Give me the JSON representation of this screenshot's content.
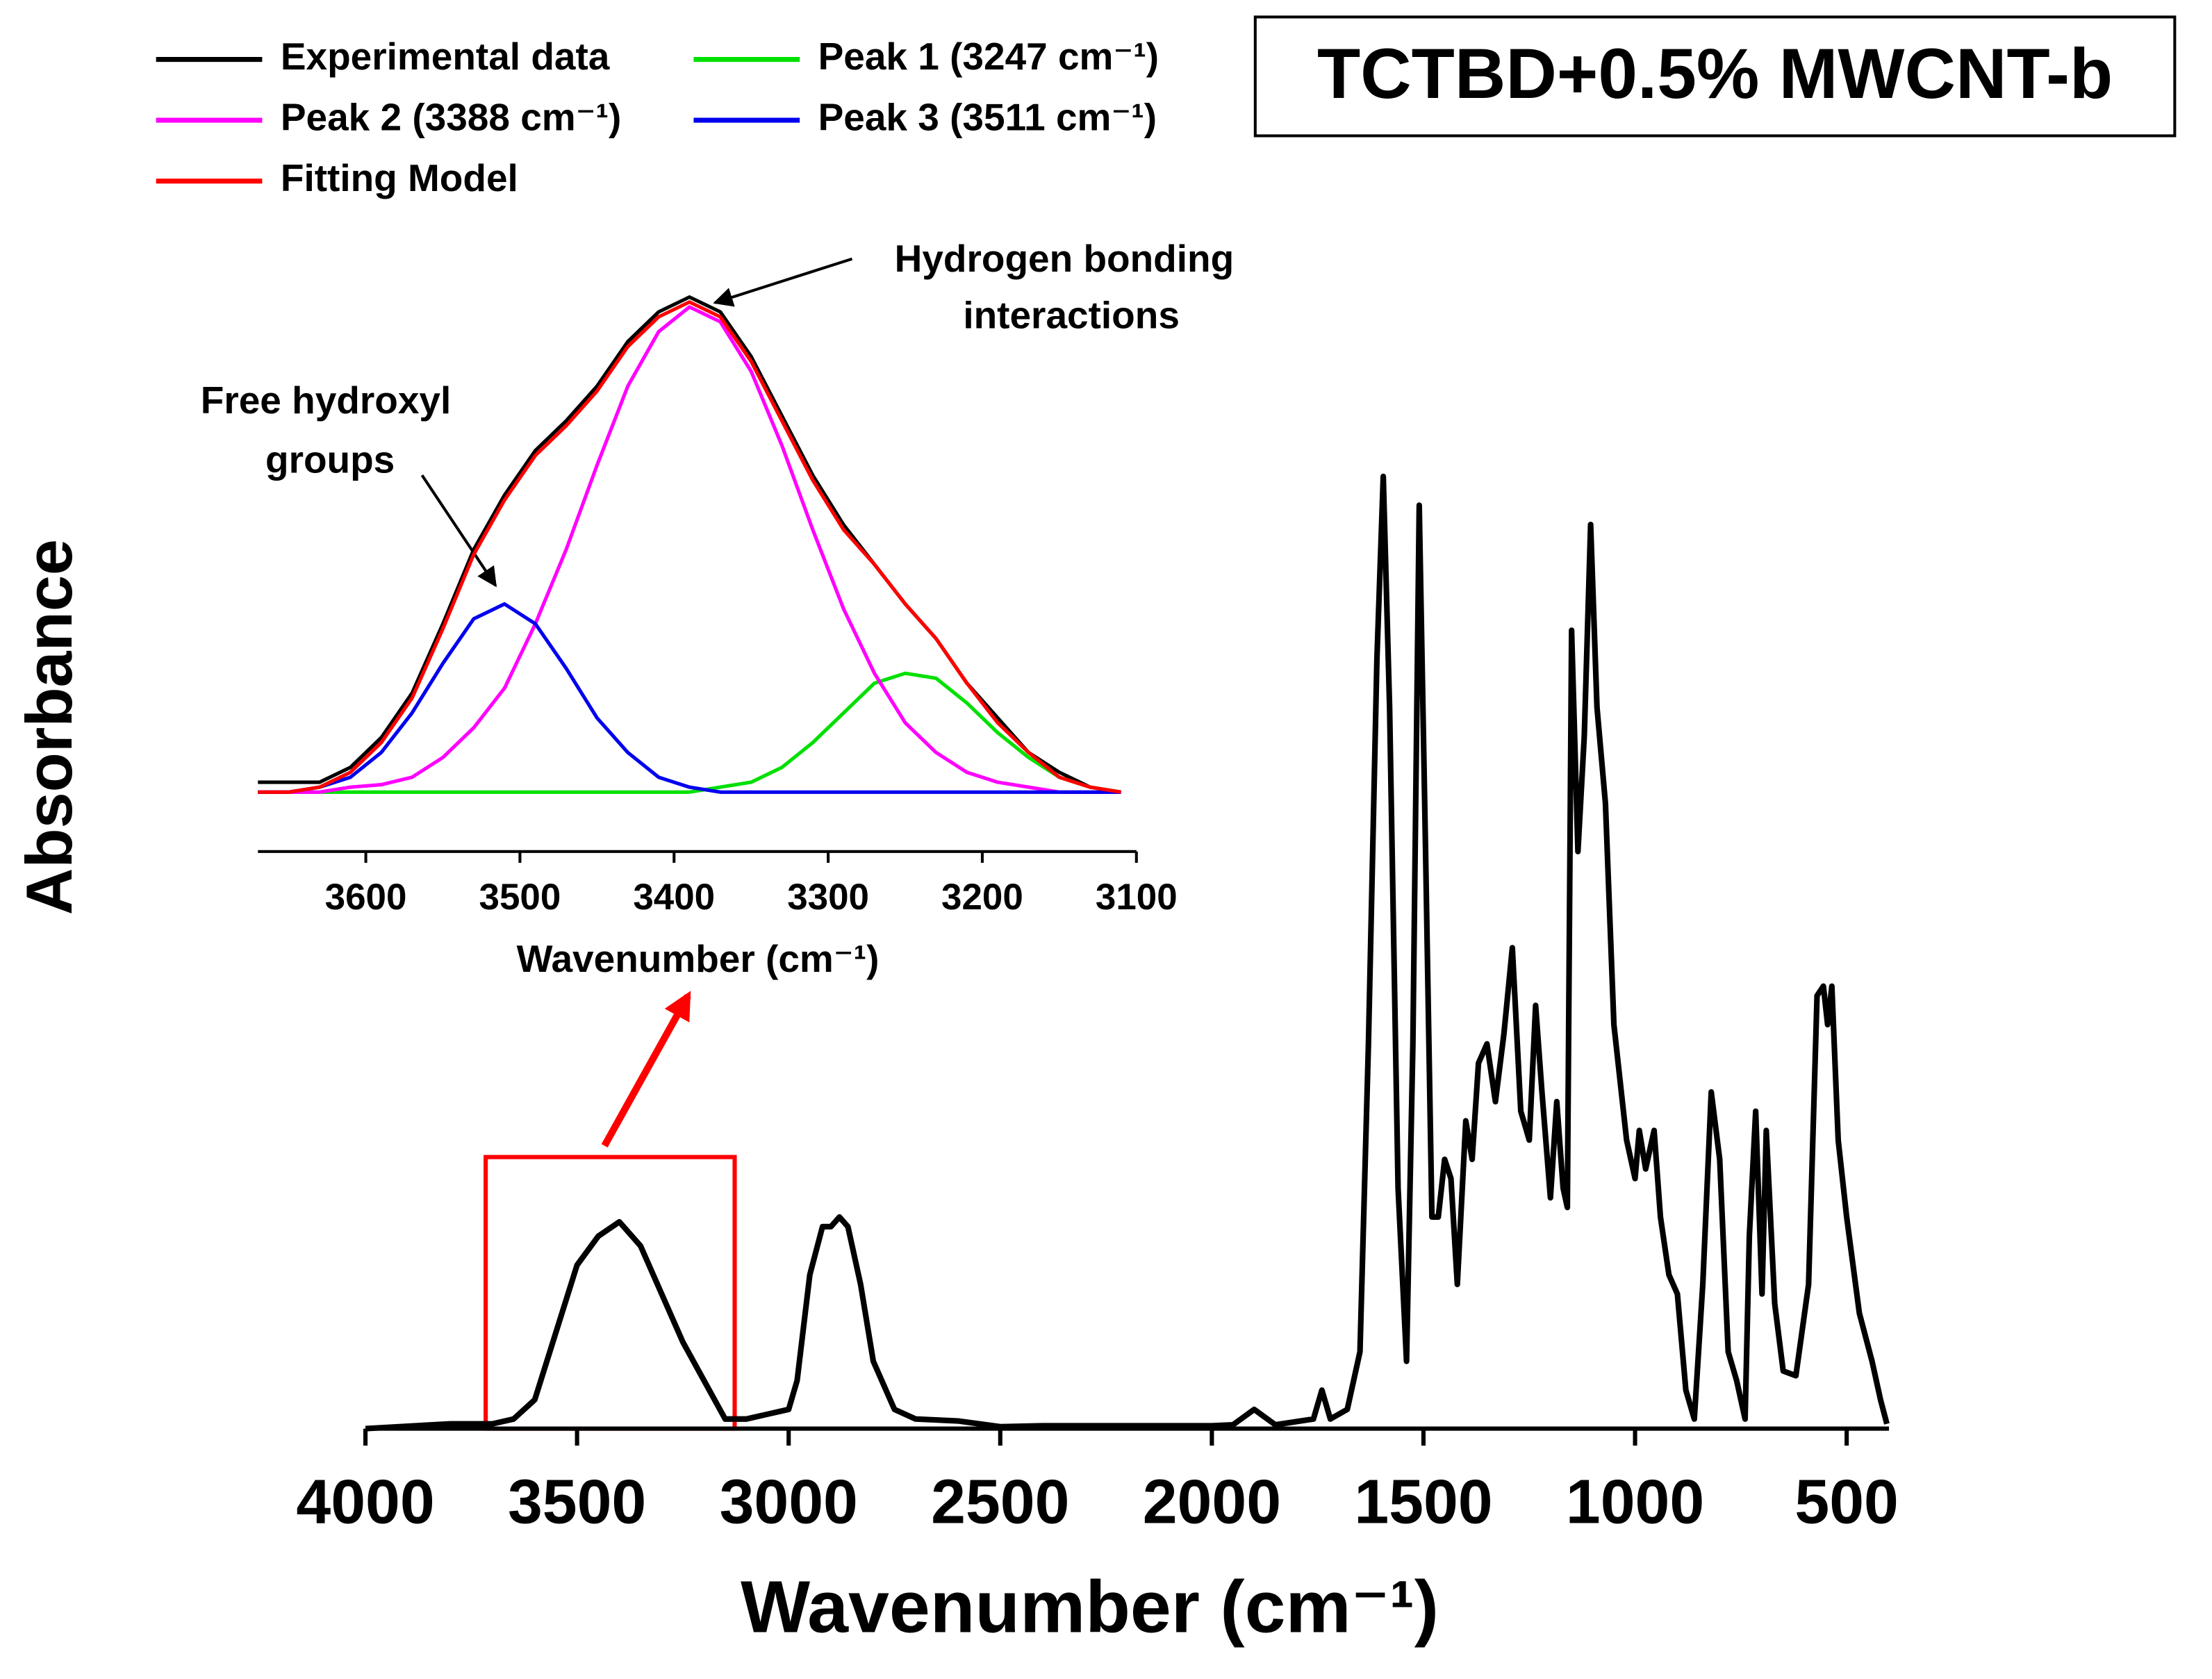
{
  "chart_data": [
    {
      "type": "line",
      "title": "TCTBD+0.5% MWCNT-b",
      "xlabel": "Wavenumber (cm⁻¹)",
      "ylabel": "Absorbance",
      "color": "#000000",
      "xlim": [
        4000,
        400
      ],
      "ylim": [
        0,
        1
      ],
      "xticks": [
        4000,
        3500,
        3000,
        2500,
        2000,
        1500,
        1000,
        500
      ],
      "x": [
        4000,
        3800,
        3700,
        3650,
        3600,
        3550,
        3500,
        3450,
        3400,
        3350,
        3300,
        3250,
        3200,
        3150,
        3100,
        3050,
        3000,
        2980,
        2950,
        2920,
        2900,
        2880,
        2860,
        2830,
        2800,
        2750,
        2700,
        2600,
        2500,
        2400,
        2300,
        2200,
        2000,
        1950,
        1900,
        1850,
        1760,
        1740,
        1720,
        1680,
        1650,
        1630,
        1610,
        1595,
        1580,
        1560,
        1540,
        1525,
        1510,
        1495,
        1480,
        1465,
        1450,
        1435,
        1420,
        1400,
        1385,
        1370,
        1350,
        1330,
        1310,
        1290,
        1270,
        1250,
        1235,
        1220,
        1200,
        1185,
        1170,
        1160,
        1150,
        1135,
        1120,
        1105,
        1090,
        1070,
        1050,
        1020,
        1000,
        990,
        975,
        955,
        940,
        920,
        900,
        880,
        860,
        840,
        820,
        800,
        780,
        760,
        740,
        730,
        715,
        700,
        690,
        670,
        650,
        620,
        590,
        570,
        555,
        545,
        535,
        520,
        500,
        470,
        440,
        420,
        405
      ],
      "values": [
        0,
        0.005,
        0.005,
        0.01,
        0.03,
        0.1,
        0.17,
        0.2,
        0.215,
        0.19,
        0.14,
        0.09,
        0.05,
        0.01,
        0.01,
        0.015,
        0.02,
        0.05,
        0.16,
        0.21,
        0.21,
        0.22,
        0.21,
        0.15,
        0.07,
        0.02,
        0.01,
        0.008,
        0.002,
        0.003,
        0.003,
        0.003,
        0.003,
        0.004,
        0.02,
        0.004,
        0.01,
        0.04,
        0.01,
        0.02,
        0.08,
        0.4,
        0.8,
        0.99,
        0.75,
        0.25,
        0.07,
        0.4,
        0.96,
        0.6,
        0.22,
        0.22,
        0.28,
        0.26,
        0.15,
        0.32,
        0.28,
        0.38,
        0.4,
        0.34,
        0.41,
        0.5,
        0.33,
        0.3,
        0.44,
        0.35,
        0.24,
        0.34,
        0.25,
        0.23,
        0.83,
        0.6,
        0.72,
        0.94,
        0.75,
        0.65,
        0.42,
        0.3,
        0.26,
        0.31,
        0.27,
        0.31,
        0.22,
        0.16,
        0.14,
        0.04,
        0.01,
        0.15,
        0.35,
        0.28,
        0.08,
        0.05,
        0.01,
        0.2,
        0.33,
        0.14,
        0.31,
        0.13,
        0.06,
        0.055,
        0.15,
        0.45,
        0.46,
        0.42,
        0.46,
        0.3,
        0.22,
        0.12,
        0.07,
        0.03,
        0.005
      ]
    },
    {
      "type": "line",
      "xlabel": "Wavenumber (cm⁻¹)",
      "xlim": [
        3670,
        3100
      ],
      "ylim": [
        -0.12,
        1.0
      ],
      "xticks": [
        3600,
        3500,
        3400,
        3300,
        3200,
        3100
      ],
      "x": [
        3670,
        3650,
        3630,
        3610,
        3590,
        3570,
        3550,
        3530,
        3510,
        3490,
        3470,
        3450,
        3430,
        3410,
        3390,
        3370,
        3350,
        3330,
        3310,
        3290,
        3270,
        3250,
        3230,
        3210,
        3190,
        3170,
        3150,
        3130,
        3110
      ],
      "series": [
        {
          "name": "Experimental data",
          "color": "#000000",
          "values": [
            0.02,
            0.02,
            0.02,
            0.05,
            0.11,
            0.2,
            0.34,
            0.49,
            0.6,
            0.69,
            0.75,
            0.82,
            0.91,
            0.97,
            1.0,
            0.97,
            0.88,
            0.76,
            0.64,
            0.54,
            0.46,
            0.38,
            0.31,
            0.22,
            0.15,
            0.08,
            0.04,
            0.01,
            0.0
          ]
        },
        {
          "name": "Peak 1 (3247 cm⁻¹)",
          "color": "#00e000",
          "values": [
            0,
            0,
            0,
            0,
            0,
            0,
            0,
            0,
            0,
            0,
            0,
            0,
            0,
            0,
            0,
            0.01,
            0.02,
            0.05,
            0.1,
            0.16,
            0.22,
            0.24,
            0.23,
            0.18,
            0.12,
            0.07,
            0.03,
            0.01,
            0
          ]
        },
        {
          "name": "Peak 2 (3388 cm⁻¹)",
          "color": "#ff00ff",
          "values": [
            0,
            0,
            0,
            0.01,
            0.015,
            0.03,
            0.07,
            0.13,
            0.21,
            0.34,
            0.49,
            0.66,
            0.82,
            0.93,
            0.98,
            0.95,
            0.85,
            0.7,
            0.53,
            0.37,
            0.24,
            0.14,
            0.08,
            0.04,
            0.02,
            0.01,
            0,
            0,
            0
          ]
        },
        {
          "name": "Peak 3 (3511 cm⁻¹)",
          "color": "#0000ee",
          "values": [
            0,
            0,
            0.01,
            0.03,
            0.08,
            0.16,
            0.26,
            0.35,
            0.38,
            0.34,
            0.25,
            0.15,
            0.08,
            0.03,
            0.01,
            0,
            0,
            0,
            0,
            0,
            0,
            0,
            0,
            0,
            0,
            0,
            0,
            0,
            0
          ]
        },
        {
          "name": "Fitting Model",
          "color": "#ff0000",
          "values": [
            0,
            0,
            0.01,
            0.04,
            0.1,
            0.19,
            0.33,
            0.48,
            0.59,
            0.68,
            0.74,
            0.81,
            0.9,
            0.96,
            0.99,
            0.96,
            0.87,
            0.75,
            0.63,
            0.53,
            0.46,
            0.38,
            0.31,
            0.22,
            0.14,
            0.08,
            0.03,
            0.01,
            0
          ]
        }
      ],
      "annotations": [
        {
          "lines": [
            "Free hydroxyl",
            "groups"
          ]
        },
        {
          "lines": [
            "Hydrogen bonding",
            "interactions"
          ]
        }
      ]
    }
  ]
}
